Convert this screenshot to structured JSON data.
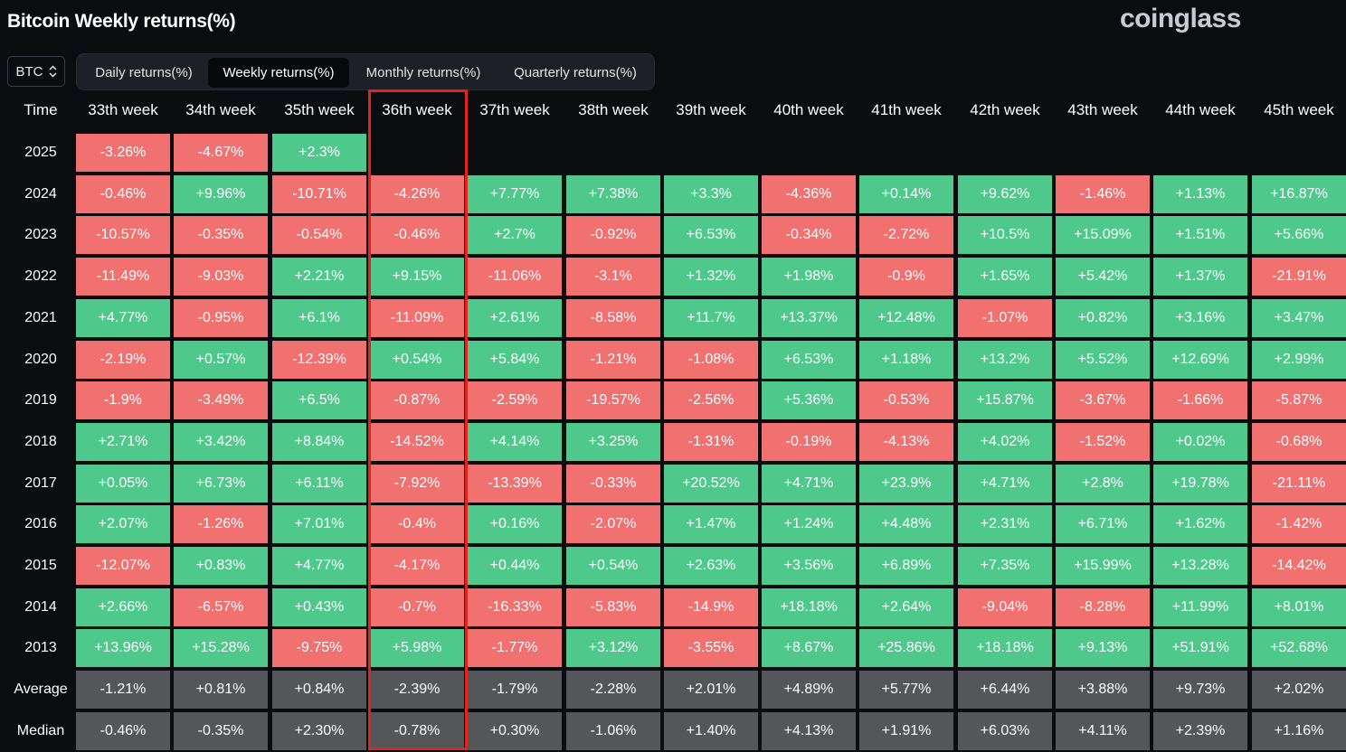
{
  "title": "Bitcoin Weekly returns(%)",
  "logo": "coinglass",
  "asset_selector": {
    "value": "BTC",
    "icon": "chevron-up-down-icon"
  },
  "tabs": [
    {
      "label": "Daily returns(%)",
      "active": false
    },
    {
      "label": "Weekly returns(%)",
      "active": true
    },
    {
      "label": "Monthly returns(%)",
      "active": false
    },
    {
      "label": "Quarterly returns(%)",
      "active": false
    }
  ],
  "colors": {
    "positive": "#4ec98b",
    "negative": "#f17070",
    "stat": "#555659",
    "highlight": "#e0251d"
  },
  "table": {
    "time_header": "Time",
    "highlighted_column": "36th week",
    "columns": [
      "33th week",
      "34th week",
      "35th week",
      "36th week",
      "37th week",
      "38th week",
      "39th week",
      "40th week",
      "41th week",
      "42th week",
      "43th week",
      "44th week",
      "45th week"
    ],
    "rows": [
      {
        "label": "2025",
        "values": [
          "-3.26%",
          "-4.67%",
          "+2.3%",
          "",
          "",
          "",
          "",
          "",
          "",
          "",
          "",
          "",
          ""
        ]
      },
      {
        "label": "2024",
        "values": [
          "-0.46%",
          "+9.96%",
          "-10.71%",
          "-4.26%",
          "+7.77%",
          "+7.38%",
          "+3.3%",
          "-4.36%",
          "+0.14%",
          "+9.62%",
          "-1.46%",
          "+1.13%",
          "+16.87%"
        ]
      },
      {
        "label": "2023",
        "values": [
          "-10.57%",
          "-0.35%",
          "-0.54%",
          "-0.46%",
          "+2.7%",
          "-0.92%",
          "+6.53%",
          "-0.34%",
          "-2.72%",
          "+10.5%",
          "+15.09%",
          "+1.51%",
          "+5.66%"
        ]
      },
      {
        "label": "2022",
        "values": [
          "-11.49%",
          "-9.03%",
          "+2.21%",
          "+9.15%",
          "-11.06%",
          "-3.1%",
          "+1.32%",
          "+1.98%",
          "-0.9%",
          "+1.65%",
          "+5.42%",
          "+1.37%",
          "-21.91%"
        ]
      },
      {
        "label": "2021",
        "values": [
          "+4.77%",
          "-0.95%",
          "+6.1%",
          "-11.09%",
          "+2.61%",
          "-8.58%",
          "+11.7%",
          "+13.37%",
          "+12.48%",
          "-1.07%",
          "+0.82%",
          "+3.16%",
          "+3.47%"
        ]
      },
      {
        "label": "2020",
        "values": [
          "-2.19%",
          "+0.57%",
          "-12.39%",
          "+0.54%",
          "+5.84%",
          "-1.21%",
          "-1.08%",
          "+6.53%",
          "+1.18%",
          "+13.2%",
          "+5.52%",
          "+12.69%",
          "+2.99%"
        ]
      },
      {
        "label": "2019",
        "values": [
          "-1.9%",
          "-3.49%",
          "+6.5%",
          "-0.87%",
          "-2.59%",
          "-19.57%",
          "-2.56%",
          "+5.36%",
          "-0.53%",
          "+15.87%",
          "-3.67%",
          "-1.66%",
          "-5.87%"
        ]
      },
      {
        "label": "2018",
        "values": [
          "+2.71%",
          "+3.42%",
          "+8.84%",
          "-14.52%",
          "+4.14%",
          "+3.25%",
          "-1.31%",
          "-0.19%",
          "-4.13%",
          "+4.02%",
          "-1.52%",
          "+0.02%",
          "-0.68%"
        ]
      },
      {
        "label": "2017",
        "values": [
          "+0.05%",
          "+6.73%",
          "+6.11%",
          "-7.92%",
          "-13.39%",
          "-0.33%",
          "+20.52%",
          "+4.71%",
          "+23.9%",
          "+4.71%",
          "+2.8%",
          "+19.78%",
          "-21.11%"
        ]
      },
      {
        "label": "2016",
        "values": [
          "+2.07%",
          "-1.26%",
          "+7.01%",
          "-0.4%",
          "+0.16%",
          "-2.07%",
          "+1.47%",
          "+1.24%",
          "+4.48%",
          "+2.31%",
          "+6.71%",
          "+1.62%",
          "-1.42%"
        ]
      },
      {
        "label": "2015",
        "values": [
          "-12.07%",
          "+0.83%",
          "+4.77%",
          "-4.17%",
          "+0.44%",
          "+0.54%",
          "+2.63%",
          "+3.56%",
          "+6.89%",
          "+7.35%",
          "+15.99%",
          "+13.28%",
          "-14.42%"
        ]
      },
      {
        "label": "2014",
        "values": [
          "+2.66%",
          "-6.57%",
          "+0.43%",
          "-0.7%",
          "-16.33%",
          "-5.83%",
          "-14.9%",
          "+18.18%",
          "+2.64%",
          "-9.04%",
          "-8.28%",
          "+11.99%",
          "+8.01%"
        ]
      },
      {
        "label": "2013",
        "values": [
          "+13.96%",
          "+15.28%",
          "-9.75%",
          "+5.98%",
          "-1.77%",
          "+3.12%",
          "-3.55%",
          "+8.67%",
          "+25.86%",
          "+18.18%",
          "+9.13%",
          "+51.91%",
          "+52.68%"
        ]
      }
    ],
    "stats": [
      {
        "label": "Average",
        "values": [
          "-1.21%",
          "+0.81%",
          "+0.84%",
          "-2.39%",
          "-1.79%",
          "-2.28%",
          "+2.01%",
          "+4.89%",
          "+5.77%",
          "+6.44%",
          "+3.88%",
          "+9.73%",
          "+2.02%"
        ]
      },
      {
        "label": "Median",
        "values": [
          "-0.46%",
          "-0.35%",
          "+2.30%",
          "-0.78%",
          "+0.30%",
          "-1.06%",
          "+1.40%",
          "+4.13%",
          "+1.91%",
          "+6.03%",
          "+4.11%",
          "+2.39%",
          "+1.16%"
        ]
      }
    ]
  }
}
